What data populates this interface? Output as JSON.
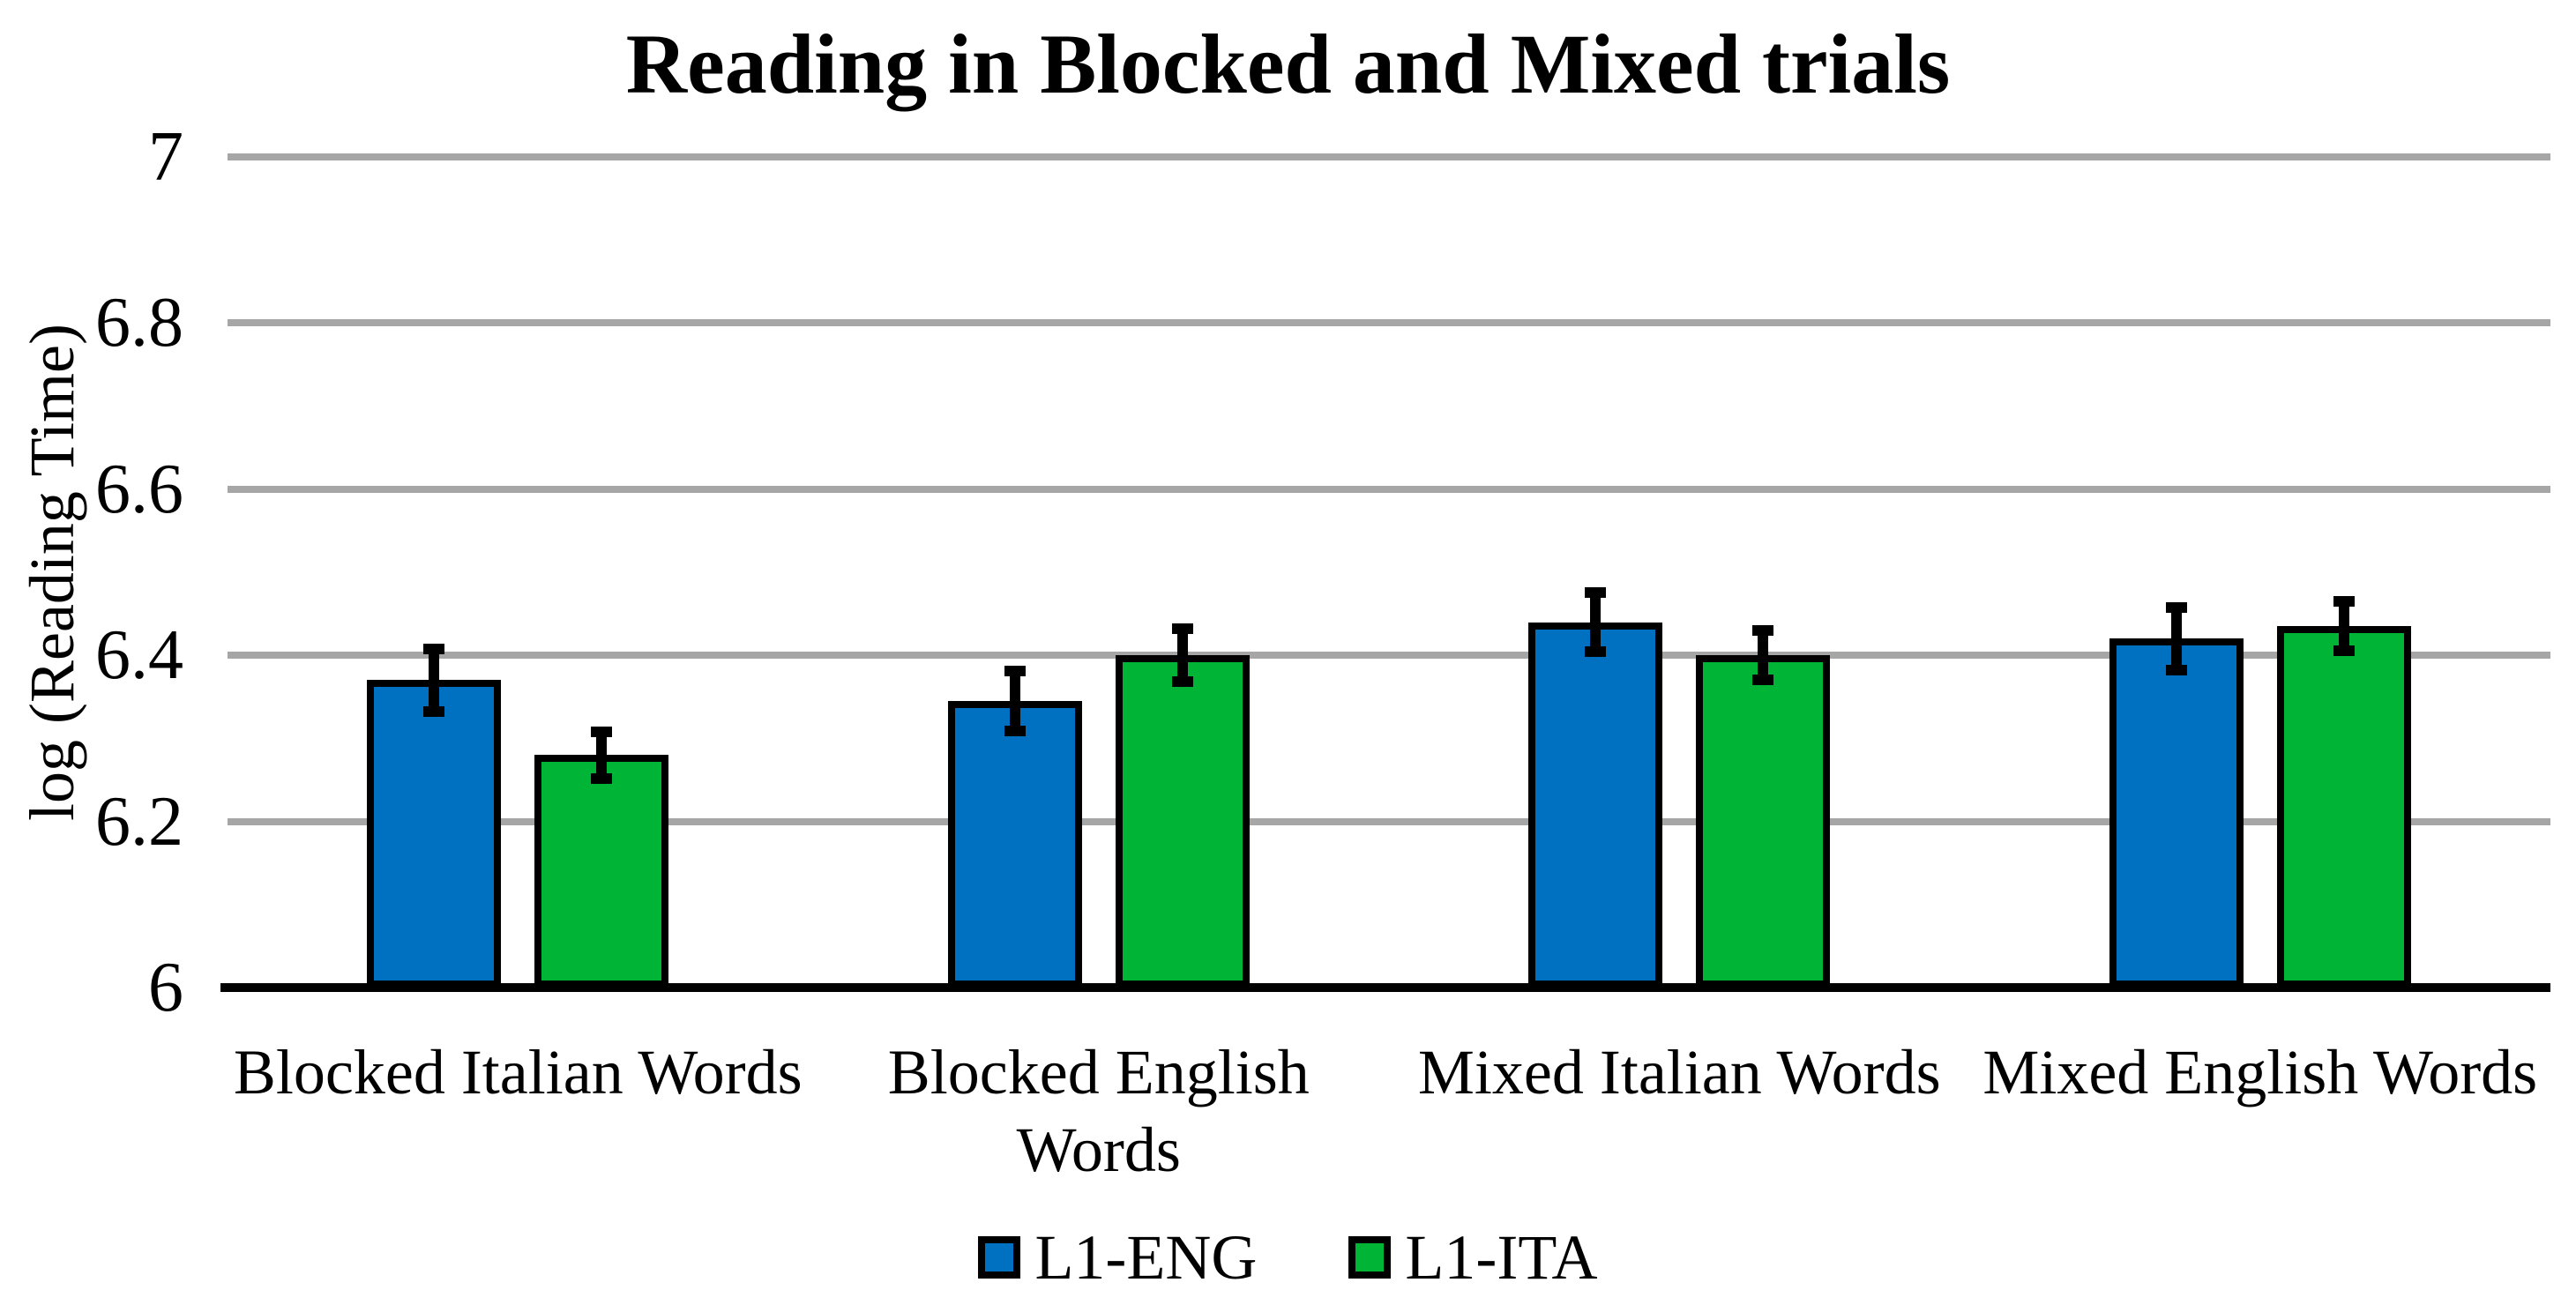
{
  "title": "Reading in Blocked and Mixed trials",
  "y_axis": {
    "label": "log (Reading Time)",
    "ticks": [
      {
        "value": 6,
        "label": "6"
      },
      {
        "value": 6.2,
        "label": "6.2"
      },
      {
        "value": 6.4,
        "label": "6.4"
      },
      {
        "value": 6.6,
        "label": "6.6"
      },
      {
        "value": 6.8,
        "label": "6.8"
      },
      {
        "value": 7,
        "label": "7"
      }
    ]
  },
  "chart_data": {
    "type": "bar",
    "title": "Reading in Blocked and Mixed trials",
    "xlabel": "",
    "ylabel": "log (Reading Time)",
    "ylim": [
      6,
      7
    ],
    "yticks": [
      6,
      6.2,
      6.4,
      6.6,
      6.8,
      7
    ],
    "grid": "horizontal",
    "gridline_color": "#A6A6A6",
    "axis_color": "#000000",
    "legend_position": "bottom",
    "categories": [
      "Blocked Italian Words",
      "Blocked English Words",
      "Mixed Italian Words",
      "Mixed English Words"
    ],
    "category_label_lines": [
      [
        "Blocked Italian Words"
      ],
      [
        "Blocked English",
        "Words"
      ],
      [
        "Mixed Italian Words"
      ],
      [
        "Mixed English Words"
      ]
    ],
    "series": [
      {
        "name": "L1-ENG",
        "color": "#0071C0",
        "values": [
          6.37,
          6.345,
          6.44,
          6.42
        ],
        "errors": [
          0.038,
          0.036,
          0.036,
          0.038
        ]
      },
      {
        "name": "L1-ITA",
        "color": "#00B436",
        "values": [
          6.28,
          6.4,
          6.4,
          6.435
        ],
        "errors": [
          0.028,
          0.032,
          0.03,
          0.03
        ]
      }
    ]
  }
}
